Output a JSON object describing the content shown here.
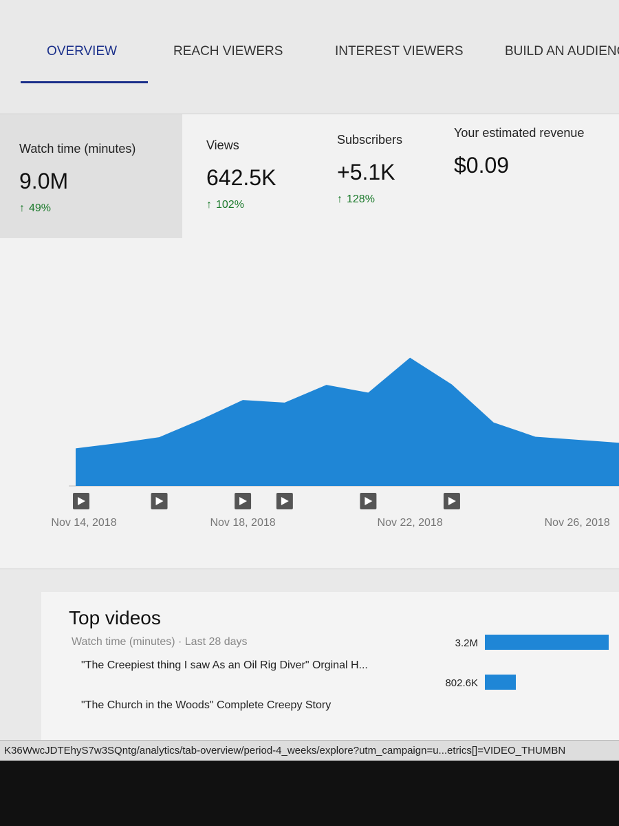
{
  "tabs": [
    "OVERVIEW",
    "REACH VIEWERS",
    "INTEREST VIEWERS",
    "BUILD AN AUDIENC"
  ],
  "metrics": [
    {
      "label": "Watch time (minutes)",
      "value": "9.0M",
      "change": "49%"
    },
    {
      "label": "Views",
      "value": "642.5K",
      "change": "102%"
    },
    {
      "label": "Subscribers",
      "value": "+5.1K",
      "change": "128%"
    },
    {
      "label": "Your estimated revenue",
      "value": "$0.09"
    }
  ],
  "chart_data": {
    "type": "area",
    "x": [
      "Nov 14, 2018",
      null,
      null,
      null,
      "Nov 18, 2018",
      null,
      null,
      null,
      "Nov 22, 2018",
      null,
      null,
      null,
      "Nov 26, 2018",
      null
    ],
    "values": [
      87,
      99,
      113,
      154,
      199,
      193,
      234,
      216,
      297,
      235,
      147,
      114,
      107,
      100
    ],
    "color": "#1f86d6"
  },
  "top_videos": {
    "title": "Top videos",
    "subtitle": "Watch time (minutes) · Last 28 days",
    "rows": [
      {
        "title": "\"The Creepiest thing I saw As an Oil Rig Diver\" Orginal H...",
        "value": 3200000,
        "value_label": "3.2M"
      },
      {
        "title": "\"The Church in the Woods\" Complete Creepy Story",
        "value": 802600,
        "value_label": "802.6K"
      }
    ],
    "color": "#1f86d6"
  },
  "status_url": "K36WwcJDTEhyS7w3SQntg/analytics/tab-overview/period-4_weeks/explore?utm_campaign=u...etrics[]=VIDEO_THUMBN"
}
